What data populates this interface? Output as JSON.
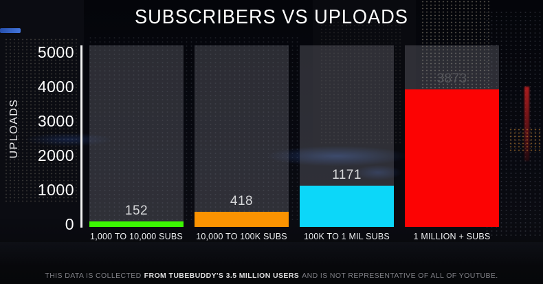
{
  "title": "SUBSCRIBERS VS UPLOADS",
  "chart_data": {
    "type": "bar",
    "title": "SUBSCRIBERS VS UPLOADS",
    "xlabel": "",
    "ylabel": "UPLOADS",
    "ylim": [
      0,
      5000
    ],
    "yticks": [
      0,
      1000,
      2000,
      3000,
      4000,
      5000
    ],
    "grid": false,
    "legend": false,
    "categories": [
      "1,000 TO 10,000 SUBS",
      "10,000 TO 100K SUBS",
      "100K TO 1 MIL SUBS",
      "1 MILLION + SUBS"
    ],
    "values": [
      152,
      418,
      1171,
      3873
    ],
    "bar_colors": [
      "#3cf702",
      "#fb9301",
      "#0cd7f9",
      "#fc0303"
    ],
    "value_label_colors": [
      "#d6d7d9",
      "#d6d7d9",
      "#d6d7d9",
      "#56575c"
    ],
    "track_color": "rgba(136,137,145,0.30)"
  },
  "footer": {
    "pre": "THIS DATA IS COLLECTED",
    "emphasis": "FROM TUBEBUDDY'S 3.5 MILLION USERS",
    "post": "AND IS NOT REPRESENTATIVE OF ALL OF YOUTUBE."
  }
}
